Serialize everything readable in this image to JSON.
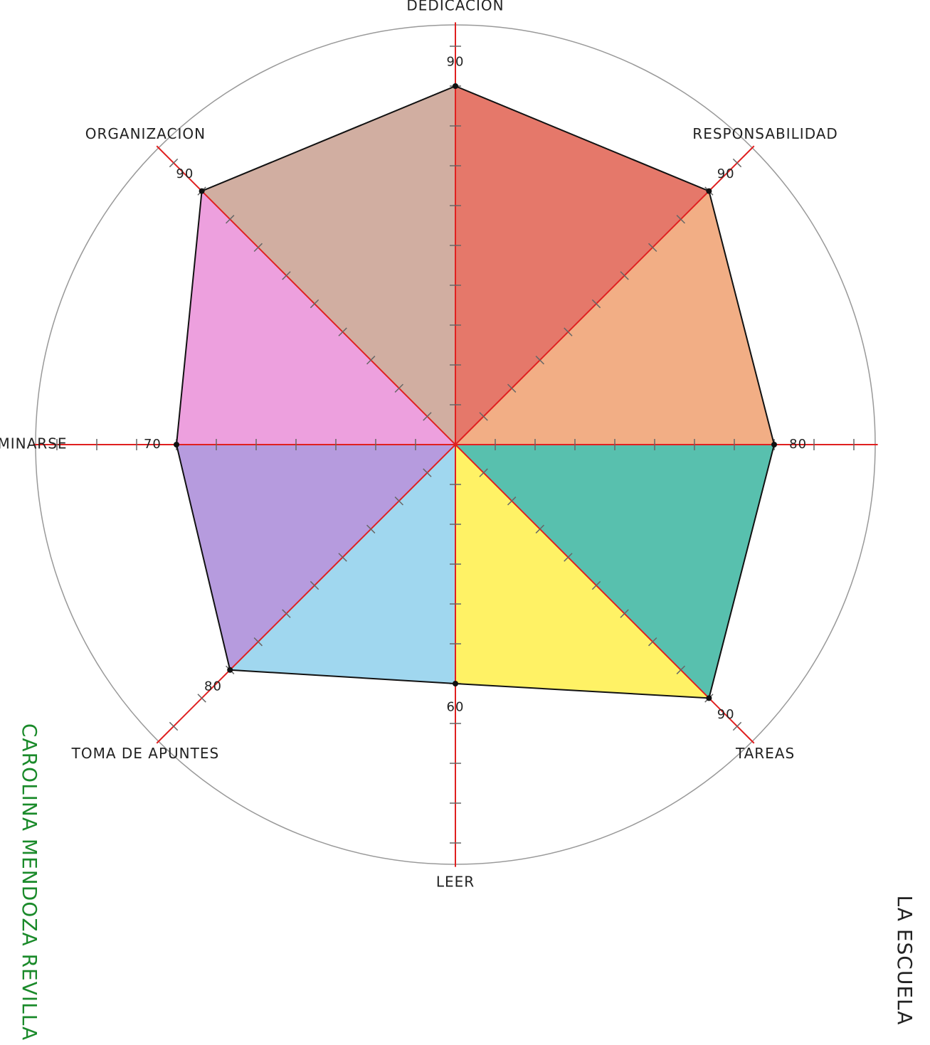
{
  "chart_data": {
    "type": "radar",
    "title": "LA ESCUELA",
    "author": "CAROLINA MENDOZA REVILLA",
    "categories": [
      "DEDICACION",
      "RESPONSABILIDAD",
      null,
      "TAREAS",
      "LEER",
      "TOMA DE APUNTES",
      "EXAMINARSE",
      "ORGANIZACION"
    ],
    "values": [
      90,
      90,
      80,
      90,
      60,
      80,
      70,
      90
    ],
    "colors": [
      "#e06050",
      "#f0a070",
      "#3bb5a0",
      "#fff04a",
      "#8fd0ec",
      "#a98ad8",
      "#ea8fd8",
      "#c9a090"
    ],
    "rlim": [
      0,
      100
    ],
    "rticks": [
      10,
      20,
      30,
      40,
      50,
      60,
      70,
      80,
      90,
      100
    ]
  }
}
